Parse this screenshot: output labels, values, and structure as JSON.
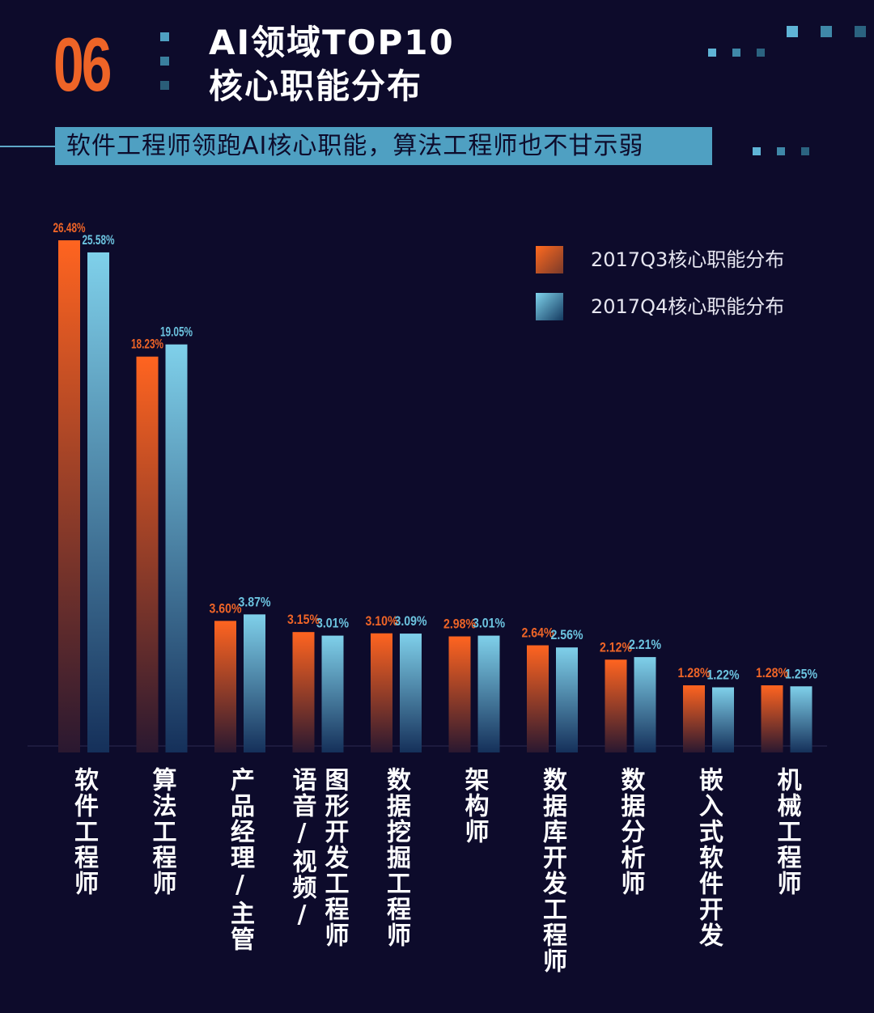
{
  "header": {
    "number": "06",
    "title_line1": "AI领域TOP10",
    "title_line2": "核心职能分布",
    "subtitle": "软件工程师领跑AI核心职能，算法工程师也不甘示弱"
  },
  "colors": {
    "background": "#0d0b2b",
    "q3": "#ee6427",
    "q4": "#6cc3df",
    "accent": "#4fa0c2"
  },
  "chart_data": {
    "type": "bar",
    "categories": [
      "软件工程师",
      "算法工程师",
      "产品经理/主管",
      "语音/视频/图形开发工程师",
      "数据挖掘工程师",
      "架构师",
      "数据库开发工程师",
      "数据分析师",
      "嵌入式软件开发",
      "机械工程师"
    ],
    "category_columns": [
      [
        "软件工程师"
      ],
      [
        "算法工程师"
      ],
      [
        "产品经理/主管"
      ],
      [
        "语音/视频/",
        "图形开发工程师"
      ],
      [
        "数据挖掘工程师"
      ],
      [
        "架构师"
      ],
      [
        "数据库开发工程师"
      ],
      [
        "数据分析师"
      ],
      [
        "嵌入式软件开发"
      ],
      [
        "机械工程师"
      ]
    ],
    "series": [
      {
        "name": "2017Q3核心职能分布",
        "values": [
          26.48,
          18.23,
          3.6,
          3.15,
          3.1,
          2.98,
          2.64,
          2.12,
          1.28,
          1.28
        ],
        "labels": [
          "26.48%",
          "18.23%",
          "3.60%",
          "3.15%",
          "3.10%",
          "2.98%",
          "2.64%",
          "2.12%",
          "1.28%",
          "1.28%"
        ]
      },
      {
        "name": "2017Q4核心职能分布",
        "values": [
          25.58,
          19.05,
          3.87,
          3.01,
          3.09,
          3.01,
          2.56,
          2.21,
          1.22,
          1.25
        ],
        "labels": [
          "25.58%",
          "19.05%",
          "3.87%",
          "3.01%",
          "3.09%",
          "3.01%",
          "2.56%",
          "2.21%",
          "1.22%",
          "1.25%"
        ]
      }
    ],
    "unit": "%",
    "legend": "top-right",
    "grid": false,
    "y_axis_shown": false
  }
}
